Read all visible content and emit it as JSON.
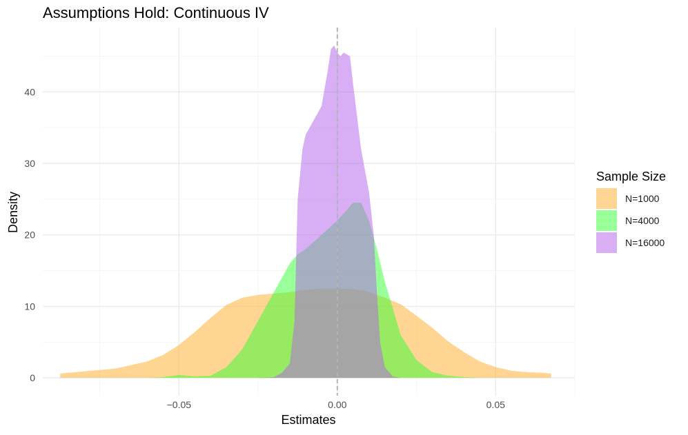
{
  "chart_data": {
    "type": "area",
    "title": "Assumptions Hold: Continuous IV",
    "xlabel": "Estimates",
    "ylabel": "Density",
    "xlim": [
      -0.093,
      0.075
    ],
    "ylim": [
      -2.5,
      49
    ],
    "x_ticks": [
      -0.05,
      0.0,
      0.05
    ],
    "x_tick_labels": [
      "−0.05",
      "0.00",
      "0.05"
    ],
    "y_ticks": [
      0,
      10,
      20,
      30,
      40
    ],
    "y_tick_labels": [
      "0",
      "10",
      "20",
      "30",
      "40"
    ],
    "grid": true,
    "reference_line": {
      "x": 0.0,
      "style": "dashed",
      "color": "#b3b3b3"
    },
    "legend": {
      "title": "Sample Size",
      "position": "right",
      "entries": [
        "N=1000",
        "N=4000",
        "N=16000"
      ]
    },
    "series": [
      {
        "name": "N=1000",
        "color": "#FDB94A",
        "opacity": 0.6,
        "x": [
          -0.0875,
          -0.08,
          -0.07,
          -0.06,
          -0.055,
          -0.05,
          -0.045,
          -0.04,
          -0.035,
          -0.03,
          -0.025,
          -0.02,
          -0.015,
          -0.01,
          -0.005,
          0.0,
          0.005,
          0.01,
          0.015,
          0.02,
          0.025,
          0.03,
          0.035,
          0.04,
          0.045,
          0.05,
          0.055,
          0.06,
          0.065,
          0.0675
        ],
        "y": [
          0.6,
          0.9,
          1.3,
          2.3,
          3.2,
          4.6,
          6.4,
          8.4,
          10.2,
          11.2,
          11.6,
          11.8,
          12.0,
          12.3,
          12.5,
          12.5,
          12.4,
          12.0,
          11.2,
          10.3,
          8.7,
          7.0,
          5.1,
          3.6,
          2.3,
          1.5,
          1.0,
          0.8,
          0.7,
          0.6
        ]
      },
      {
        "name": "N=4000",
        "color": "#33FF33",
        "opacity": 0.5,
        "x": [
          -0.06,
          -0.055,
          -0.05,
          -0.045,
          -0.04,
          -0.035,
          -0.03,
          -0.025,
          -0.02,
          -0.015,
          -0.0125,
          -0.01,
          -0.005,
          0.0,
          0.005,
          0.0075,
          0.01,
          0.0125,
          0.015,
          0.02,
          0.025,
          0.03,
          0.035,
          0.04,
          0.045
        ],
        "y": [
          0.0,
          0.1,
          0.4,
          0.2,
          0.3,
          1.5,
          4.0,
          8.0,
          12.0,
          16.0,
          17.3,
          18.0,
          20.0,
          22.0,
          24.5,
          24.5,
          22.0,
          18.0,
          13.5,
          6.0,
          2.5,
          0.8,
          0.3,
          0.1,
          0.0
        ]
      },
      {
        "name": "N=16000",
        "color": "#B25FEA",
        "opacity": 0.5,
        "x": [
          -0.025,
          -0.02,
          -0.0175,
          -0.015,
          -0.0135,
          -0.0125,
          -0.011,
          -0.01,
          -0.0075,
          -0.005,
          -0.003,
          -0.002,
          -0.001,
          0.0,
          0.001,
          0.002,
          0.004,
          0.005,
          0.0075,
          0.01,
          0.0115,
          0.0125,
          0.0135,
          0.015,
          0.0175,
          0.02
        ],
        "y": [
          0.0,
          0.1,
          0.7,
          2.0,
          8.0,
          25.0,
          32.0,
          34.0,
          36.0,
          38.0,
          43.0,
          46.0,
          46.5,
          45.5,
          45.0,
          45.5,
          45.0,
          41.0,
          32.0,
          26.0,
          20.0,
          12.0,
          5.0,
          1.5,
          0.2,
          0.0
        ]
      }
    ]
  }
}
